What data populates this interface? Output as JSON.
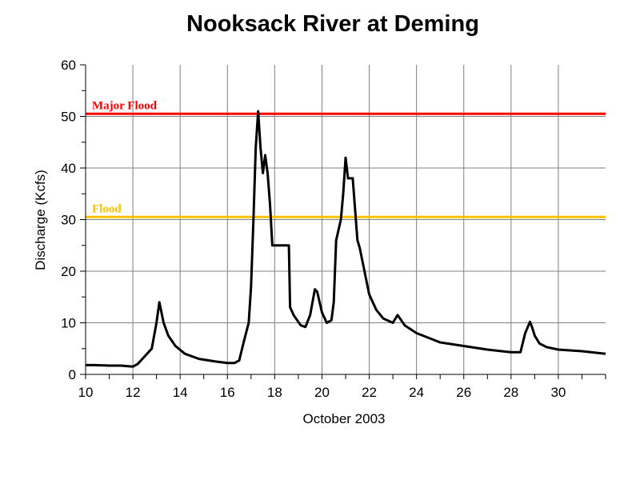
{
  "chart_data": {
    "type": "line",
    "title": "Nooksack River at Deming",
    "xlabel": "October 2003",
    "ylabel": "Discharge (Kcfs)",
    "xlim": [
      10,
      32
    ],
    "ylim": [
      0,
      60
    ],
    "x_ticks": [
      10,
      12,
      14,
      16,
      18,
      20,
      22,
      24,
      26,
      28,
      30
    ],
    "x_tick_labels": [
      "10",
      "12",
      "14",
      "16",
      "18",
      "20",
      "22",
      "24",
      "26",
      "28",
      "30"
    ],
    "y_ticks": [
      0,
      10,
      20,
      30,
      40,
      50,
      60
    ],
    "y_tick_labels": [
      "0",
      "10",
      "20",
      "30",
      "40",
      "50",
      "60"
    ],
    "grid": true,
    "reference_lines": [
      {
        "label": "Major Flood",
        "y": 50.5,
        "color": "#ff0000"
      },
      {
        "label": "Flood",
        "y": 30.5,
        "color": "#ffc000"
      }
    ],
    "series": [
      {
        "color": "#000000",
        "x": [
          10.0,
          10.4,
          11.0,
          11.5,
          12.0,
          12.2,
          12.5,
          12.8,
          13.0,
          13.12,
          13.3,
          13.5,
          13.8,
          14.2,
          14.8,
          15.5,
          16.0,
          16.3,
          16.5,
          16.7,
          16.9,
          17.0,
          17.1,
          17.2,
          17.3,
          17.4,
          17.5,
          17.6,
          17.7,
          17.8,
          17.9,
          18.0,
          18.2,
          18.4,
          18.6,
          18.65,
          18.8,
          19.1,
          19.3,
          19.5,
          19.7,
          19.8,
          19.9,
          20.0,
          20.2,
          20.4,
          20.5,
          20.6,
          20.8,
          20.9,
          21.0,
          21.1,
          21.2,
          21.3,
          21.5,
          21.6,
          21.8,
          22.0,
          22.3,
          22.6,
          23.0,
          23.2,
          23.5,
          24.0,
          25.0,
          26.0,
          27.0,
          28.0,
          28.4,
          28.6,
          28.8,
          28.9,
          29.0,
          29.2,
          29.5,
          30.0,
          31.0,
          32.0
        ],
        "y": [
          1.8,
          1.8,
          1.7,
          1.7,
          1.5,
          2.0,
          3.5,
          5.0,
          10.0,
          14.0,
          10.0,
          7.5,
          5.5,
          4.0,
          3.0,
          2.5,
          2.2,
          2.2,
          2.7,
          6.5,
          10.0,
          17.0,
          30.0,
          44.0,
          51.0,
          44.0,
          39.0,
          42.5,
          39.0,
          33.0,
          25.0,
          25.0,
          25.0,
          25.0,
          25.0,
          13.0,
          11.5,
          9.5,
          9.2,
          11.5,
          16.5,
          16.0,
          14.0,
          12.0,
          10.0,
          10.5,
          14.0,
          26.0,
          30.0,
          35.0,
          42.0,
          38.0,
          38.0,
          38.0,
          26.0,
          24.5,
          20.0,
          15.5,
          12.5,
          10.8,
          10.0,
          11.5,
          9.5,
          8.0,
          6.2,
          5.5,
          4.8,
          4.3,
          4.3,
          8.0,
          10.2,
          9.0,
          7.5,
          6.0,
          5.3,
          4.8,
          4.5,
          4.0
        ]
      }
    ]
  }
}
